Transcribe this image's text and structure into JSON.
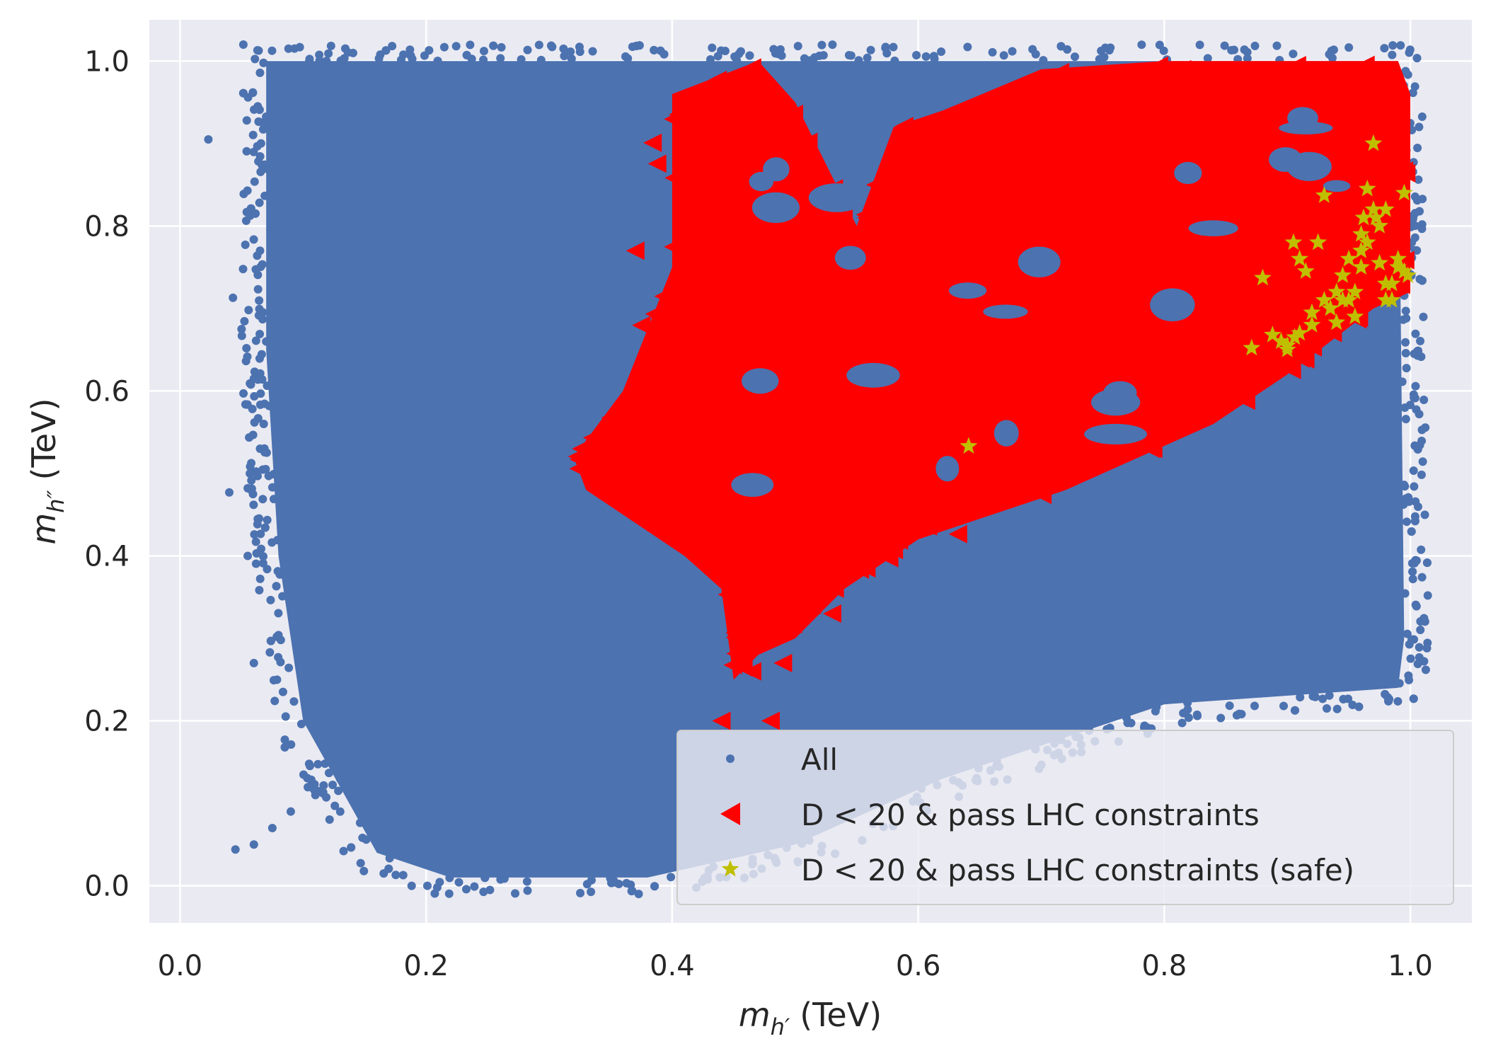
{
  "chart_data": {
    "type": "scatter",
    "title": "",
    "xlabel": {
      "base": "m",
      "sub": "h′",
      "unit": "(TeV)"
    },
    "ylabel": {
      "base": "m",
      "sub": "h″",
      "unit": "(TeV)"
    },
    "xlim": [
      -0.025,
      1.05
    ],
    "ylim": [
      -0.045,
      1.05
    ],
    "xticks": [
      "0.0",
      "0.2",
      "0.4",
      "0.6",
      "0.8",
      "1.0"
    ],
    "yticks": [
      "0.0",
      "0.2",
      "0.4",
      "0.6",
      "0.8",
      "1.0"
    ],
    "grid": true,
    "legend_position": "lower-right",
    "series": [
      {
        "name": "All",
        "marker": "circle",
        "color": "#4c72b0",
        "regions": [
          [
            [
              0.07,
              1.0
            ],
            [
              0.99,
              1.0
            ],
            [
              0.995,
              0.3
            ],
            [
              0.99,
              0.24
            ],
            [
              0.8,
              0.22
            ],
            [
              0.62,
              0.13
            ],
            [
              0.5,
              0.05
            ],
            [
              0.38,
              0.01
            ],
            [
              0.22,
              0.01
            ],
            [
              0.16,
              0.04
            ],
            [
              0.13,
              0.12
            ],
            [
              0.1,
              0.2
            ],
            [
              0.08,
              0.4
            ],
            [
              0.07,
              0.65
            ]
          ]
        ],
        "outliers": [
          [
            0.023,
            0.905
          ],
          [
            0.043,
            0.713
          ],
          [
            0.04,
            0.477
          ],
          [
            0.055,
            0.482
          ],
          [
            0.055,
            0.4
          ],
          [
            0.05,
            0.675
          ],
          [
            0.06,
            0.615
          ],
          [
            0.065,
            0.77
          ],
          [
            0.06,
            0.27
          ],
          [
            0.065,
            0.53
          ],
          [
            0.07,
            0.66
          ],
          [
            0.068,
            0.56
          ],
          [
            0.045,
            0.044
          ],
          [
            0.06,
            0.05
          ],
          [
            0.075,
            0.07
          ],
          [
            0.09,
            0.09
          ],
          [
            0.11,
            0.11
          ],
          [
            0.13,
            0.13
          ],
          [
            0.15,
            0.15
          ],
          [
            0.17,
            0.17
          ],
          [
            0.19,
            0.19
          ]
        ]
      },
      {
        "name": "D < 20 & pass LHC constraints",
        "marker": "triangle-left",
        "color": "#ff0000",
        "regions": [
          [
            [
              0.32,
              0.52
            ],
            [
              0.36,
              0.6
            ],
            [
              0.4,
              0.75
            ],
            [
              0.4,
              0.96
            ],
            [
              0.47,
              1.0
            ],
            [
              0.5,
              0.95
            ],
            [
              0.55,
              0.8
            ],
            [
              0.58,
              0.92
            ],
            [
              0.62,
              0.94
            ],
            [
              0.7,
              0.99
            ],
            [
              0.8,
              1.0
            ],
            [
              0.99,
              1.0
            ],
            [
              1.0,
              0.96
            ],
            [
              1.0,
              0.72
            ],
            [
              0.97,
              0.7
            ],
            [
              0.9,
              0.62
            ],
            [
              0.84,
              0.56
            ],
            [
              0.72,
              0.48
            ],
            [
              0.6,
              0.42
            ],
            [
              0.54,
              0.36
            ],
            [
              0.5,
              0.3
            ],
            [
              0.47,
              0.28
            ],
            [
              0.45,
              0.25
            ],
            [
              0.44,
              0.36
            ],
            [
              0.41,
              0.4
            ],
            [
              0.37,
              0.44
            ],
            [
              0.33,
              0.48
            ]
          ]
        ],
        "outliers": [
          [
            0.44,
            0.2
          ],
          [
            0.48,
            0.2
          ],
          [
            0.465,
            0.26
          ],
          [
            0.49,
            0.27
          ],
          [
            0.53,
            0.33
          ],
          [
            0.55,
            0.54
          ],
          [
            0.37,
            0.77
          ]
        ]
      },
      {
        "name": "D < 20 & pass LHC constraints (safe)",
        "marker": "star",
        "color": "#bfbf00",
        "x": [
          0.641,
          0.871,
          0.88,
          0.888,
          0.895,
          0.9,
          0.905,
          0.91,
          0.915,
          0.92,
          0.925,
          0.93,
          0.935,
          0.94,
          0.945,
          0.95,
          0.955,
          0.96,
          0.962,
          0.965,
          0.97,
          0.975,
          0.98,
          0.985,
          0.99,
          0.995,
          0.9,
          0.91,
          0.92,
          0.94,
          0.95,
          0.96,
          0.965,
          0.975,
          0.985,
          0.995,
          0.93,
          0.955,
          0.97,
          0.98,
          0.99,
          0.906,
          0.925,
          0.945,
          0.96,
          0.972,
          0.98,
          0.998
        ],
        "y": [
          0.533,
          0.652,
          0.737,
          0.668,
          0.66,
          0.65,
          0.78,
          0.67,
          0.745,
          0.68,
          0.78,
          0.837,
          0.7,
          0.683,
          0.74,
          0.71,
          0.69,
          0.75,
          0.81,
          0.78,
          0.82,
          0.8,
          0.73,
          0.71,
          0.76,
          0.745,
          0.655,
          0.76,
          0.695,
          0.72,
          0.76,
          0.79,
          0.845,
          0.755,
          0.73,
          0.84,
          0.71,
          0.72,
          0.9,
          0.82,
          0.75,
          0.665,
          0.78,
          0.71,
          0.77,
          0.81,
          0.71,
          0.74
        ]
      }
    ]
  }
}
